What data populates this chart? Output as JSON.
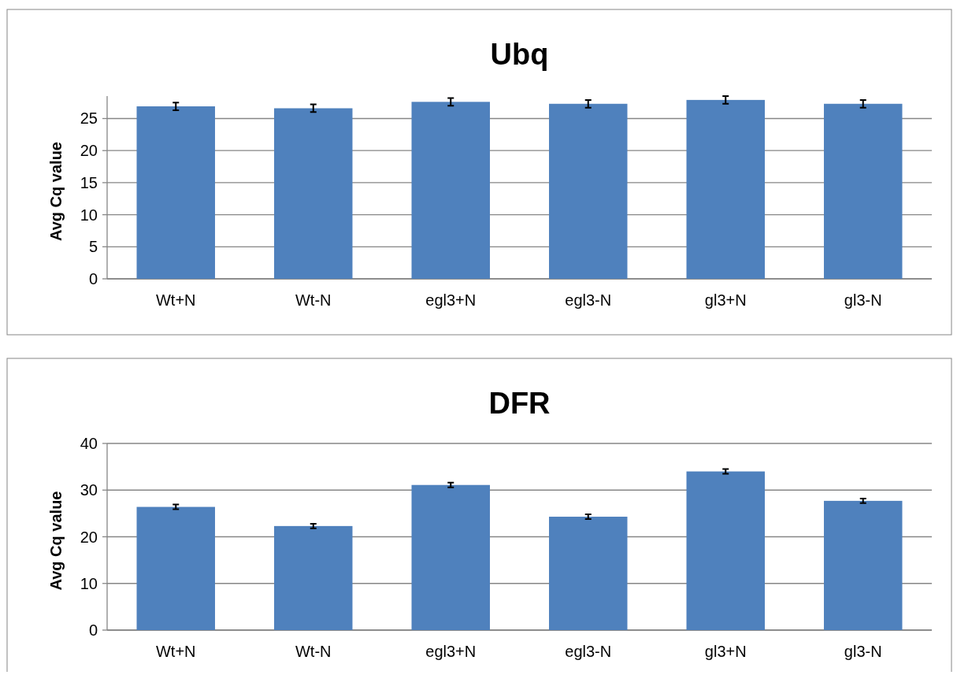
{
  "chart_data": [
    {
      "type": "bar",
      "title": "Ubq",
      "ylabel": "Avg Cq value",
      "categories": [
        "Wt+N",
        "Wt-N",
        "egl3+N",
        "egl3-N",
        "gl3+N",
        "gl3-N"
      ],
      "values": [
        26.9,
        26.6,
        27.6,
        27.3,
        27.9,
        27.3
      ],
      "errors": [
        0.6,
        0.6,
        0.6,
        0.6,
        0.6,
        0.6
      ],
      "color": "#4f81bd",
      "ylim": [
        0,
        28.5
      ],
      "yticks": [
        0,
        5,
        10,
        15,
        20,
        25
      ],
      "grid": "y"
    },
    {
      "type": "bar",
      "title": "DFR",
      "ylabel": "Avg Cq value",
      "categories": [
        "Wt+N",
        "Wt-N",
        "egl3+N",
        "egl3-N",
        "gl3+N",
        "gl3-N"
      ],
      "values": [
        26.4,
        22.3,
        31.1,
        24.3,
        34.0,
        27.7
      ],
      "errors": [
        0.5,
        0.5,
        0.5,
        0.5,
        0.5,
        0.5
      ],
      "color": "#4f81bd",
      "ylim": [
        0,
        40
      ],
      "yticks": [
        0,
        10,
        20,
        30,
        40
      ],
      "grid": "y"
    }
  ]
}
